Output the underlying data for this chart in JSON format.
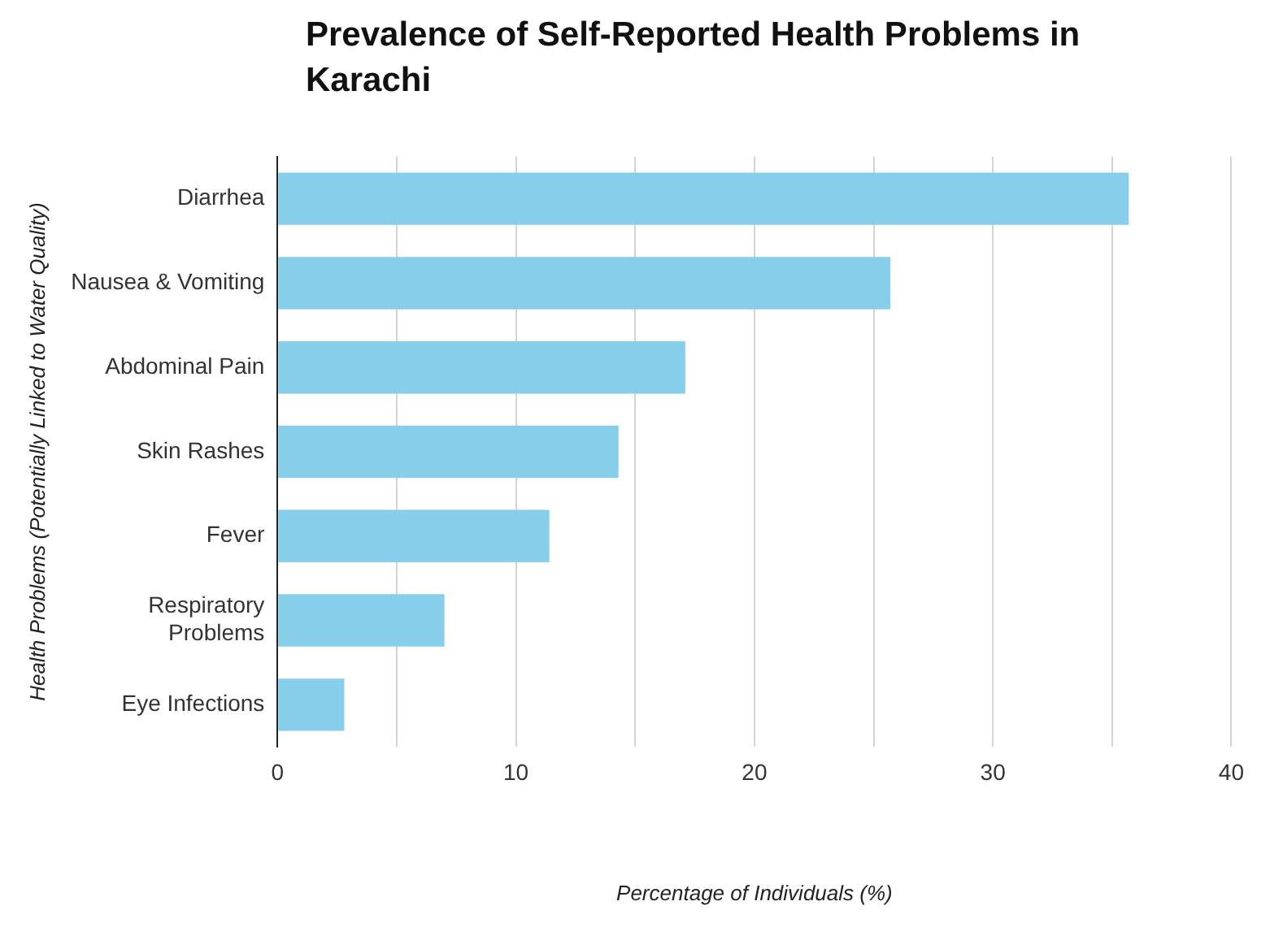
{
  "chart_data": {
    "type": "bar",
    "orientation": "horizontal",
    "title": "Prevalence of Self-Reported Health Problems in Karachi",
    "xlabel": "Percentage of Individuals (%)",
    "ylabel": "Health Problems (Potentially Linked to Water Quality)",
    "categories": [
      "Diarrhea",
      "Nausea & Vomiting",
      "Abdominal Pain",
      "Skin Rashes",
      "Fever",
      "Respiratory Problems",
      "Eye Infections"
    ],
    "values": [
      35.7,
      25.7,
      17.1,
      14.3,
      11.4,
      7.0,
      2.8
    ],
    "color": "#87ceeb",
    "xlim": [
      0,
      40
    ],
    "xticks": [
      0,
      {
        "value": 5,
        "label": null
      },
      10,
      {
        "value": 15,
        "label": null
      },
      20,
      {
        "value": 25,
        "label": null
      },
      30,
      {
        "value": 35,
        "label": null
      },
      40
    ],
    "grid": "x",
    "legend": false
  }
}
